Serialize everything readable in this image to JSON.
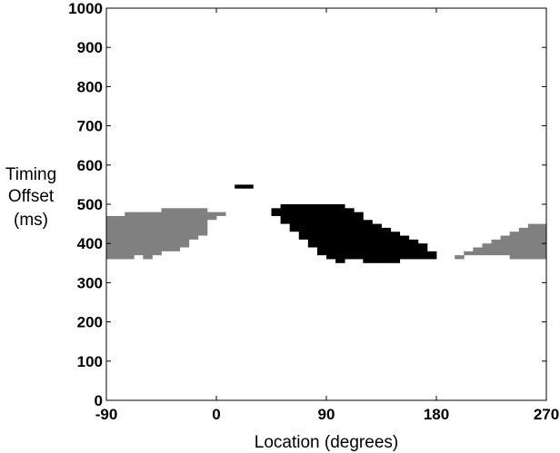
{
  "chart_data": {
    "type": "heatmap",
    "title": "",
    "xlabel": "Location (degrees)",
    "ylabel_lines": [
      "Timing",
      "Offset",
      "(ms)"
    ],
    "xlim": [
      -90,
      270
    ],
    "ylim": [
      0,
      1000
    ],
    "xticks": [
      -90,
      0,
      90,
      180,
      270
    ],
    "yticks": [
      0,
      100,
      200,
      300,
      400,
      500,
      600,
      700,
      800,
      900,
      1000
    ],
    "grid": false,
    "cell_width_deg": 7.5,
    "cell_height_ms": 10,
    "colors": {
      "gray": "#808080",
      "black": "#000000",
      "background": "#ffffff",
      "axis": "#000000"
    },
    "series": [
      {
        "name": "",
        "color": "gray",
        "columns": [
          {
            "x0": -90,
            "x1": -82.5,
            "y0": 360,
            "y1": 470
          },
          {
            "x0": -82.5,
            "x1": -75,
            "y0": 360,
            "y1": 470
          },
          {
            "x0": -75,
            "x1": -67.5,
            "y0": 360,
            "y1": 480
          },
          {
            "x0": -67.5,
            "x1": -60,
            "y0": 370,
            "y1": 480
          },
          {
            "x0": -60,
            "x1": -52.5,
            "y0": 360,
            "y1": 480
          },
          {
            "x0": -52.5,
            "x1": -45,
            "y0": 370,
            "y1": 480
          },
          {
            "x0": -45,
            "x1": -37.5,
            "y0": 380,
            "y1": 490
          },
          {
            "x0": -37.5,
            "x1": -30,
            "y0": 380,
            "y1": 490
          },
          {
            "x0": -30,
            "x1": -22.5,
            "y0": 390,
            "y1": 490
          },
          {
            "x0": -22.5,
            "x1": -15,
            "y0": 410,
            "y1": 490
          },
          {
            "x0": -15,
            "x1": -7.5,
            "y0": 420,
            "y1": 490
          },
          {
            "x0": -7.5,
            "x1": 0,
            "y0": 460,
            "y1": 480
          },
          {
            "x0": 0,
            "x1": 7.5,
            "y0": 470,
            "y1": 480
          },
          {
            "x0": 195,
            "x1": 202.5,
            "y0": 360,
            "y1": 370
          },
          {
            "x0": 202.5,
            "x1": 210,
            "y0": 370,
            "y1": 380
          },
          {
            "x0": 210,
            "x1": 217.5,
            "y0": 370,
            "y1": 390
          },
          {
            "x0": 217.5,
            "x1": 225,
            "y0": 370,
            "y1": 400
          },
          {
            "x0": 225,
            "x1": 232.5,
            "y0": 370,
            "y1": 410
          },
          {
            "x0": 232.5,
            "x1": 240,
            "y0": 370,
            "y1": 420
          },
          {
            "x0": 240,
            "x1": 247.5,
            "y0": 360,
            "y1": 430
          },
          {
            "x0": 247.5,
            "x1": 255,
            "y0": 360,
            "y1": 440
          },
          {
            "x0": 255,
            "x1": 262.5,
            "y0": 360,
            "y1": 450
          },
          {
            "x0": 262.5,
            "x1": 270,
            "y0": 360,
            "y1": 450
          }
        ]
      },
      {
        "name": "",
        "color": "black",
        "columns": [
          {
            "x0": 15,
            "x1": 22.5,
            "y0": 540,
            "y1": 550
          },
          {
            "x0": 22.5,
            "x1": 30,
            "y0": 540,
            "y1": 550
          },
          {
            "x0": 45,
            "x1": 52.5,
            "y0": 470,
            "y1": 490
          },
          {
            "x0": 52.5,
            "x1": 60,
            "y0": 450,
            "y1": 500
          },
          {
            "x0": 60,
            "x1": 67.5,
            "y0": 430,
            "y1": 500
          },
          {
            "x0": 67.5,
            "x1": 75,
            "y0": 410,
            "y1": 500
          },
          {
            "x0": 75,
            "x1": 82.5,
            "y0": 390,
            "y1": 500
          },
          {
            "x0": 82.5,
            "x1": 90,
            "y0": 370,
            "y1": 500
          },
          {
            "x0": 90,
            "x1": 97.5,
            "y0": 360,
            "y1": 500
          },
          {
            "x0": 97.5,
            "x1": 105,
            "y0": 350,
            "y1": 500
          },
          {
            "x0": 105,
            "x1": 112.5,
            "y0": 360,
            "y1": 490
          },
          {
            "x0": 112.5,
            "x1": 120,
            "y0": 360,
            "y1": 480
          },
          {
            "x0": 120,
            "x1": 127.5,
            "y0": 350,
            "y1": 460
          },
          {
            "x0": 127.5,
            "x1": 135,
            "y0": 350,
            "y1": 450
          },
          {
            "x0": 135,
            "x1": 142.5,
            "y0": 350,
            "y1": 440
          },
          {
            "x0": 142.5,
            "x1": 150,
            "y0": 350,
            "y1": 430
          },
          {
            "x0": 150,
            "x1": 157.5,
            "y0": 360,
            "y1": 420
          },
          {
            "x0": 157.5,
            "x1": 165,
            "y0": 360,
            "y1": 410
          },
          {
            "x0": 165,
            "x1": 172.5,
            "y0": 360,
            "y1": 400
          },
          {
            "x0": 172.5,
            "x1": 180,
            "y0": 360,
            "y1": 380
          }
        ]
      }
    ]
  }
}
